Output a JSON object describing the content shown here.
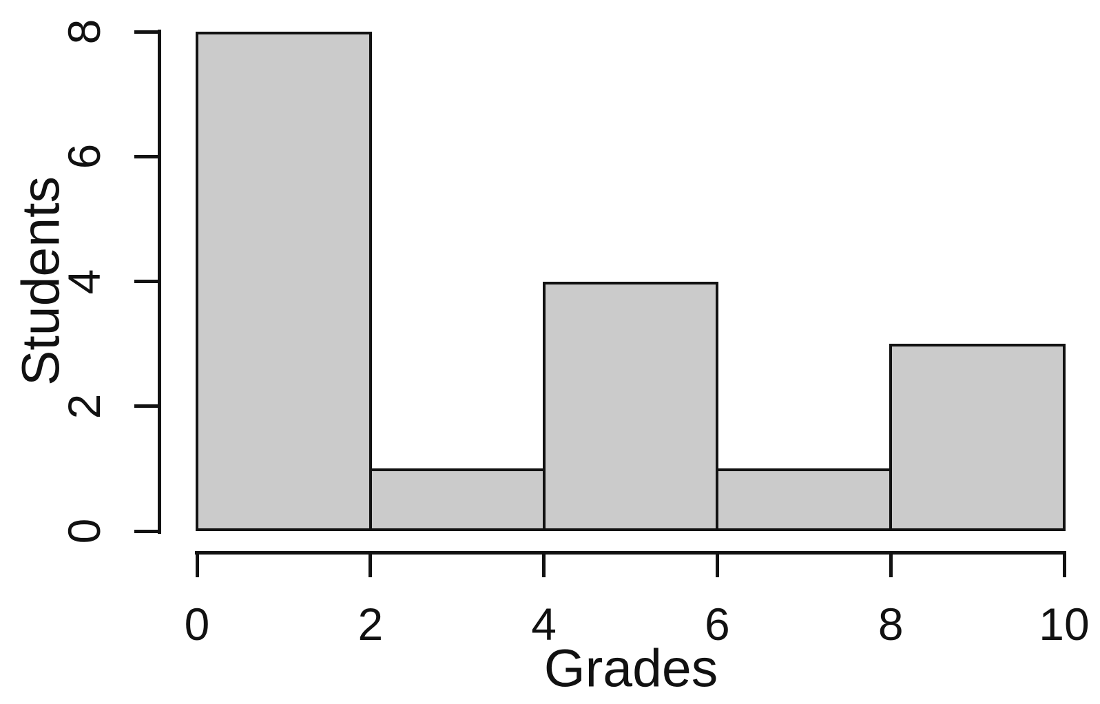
{
  "figure": {
    "background": "#ffffff",
    "bar_fill": "#cbcbcb",
    "bar_border": "#121212",
    "axis_color": "#121212",
    "text_color": "#111111"
  },
  "chart_data": {
    "type": "bar",
    "subtype": "histogram",
    "title": "",
    "xlabel": "Grades",
    "ylabel": "Students",
    "bin_edges": [
      0,
      2,
      4,
      6,
      8,
      10
    ],
    "counts": [
      8,
      1,
      4,
      1,
      3
    ],
    "categories": [
      "0-2",
      "2-4",
      "4-6",
      "6-8",
      "8-10"
    ],
    "values": [
      8,
      1,
      4,
      1,
      3
    ],
    "xlim": [
      0,
      10
    ],
    "ylim": [
      0,
      8
    ],
    "xticks": [
      0,
      2,
      4,
      6,
      8,
      10
    ],
    "yticks": [
      0,
      2,
      4,
      6,
      8
    ],
    "grid": false,
    "legend": null
  }
}
